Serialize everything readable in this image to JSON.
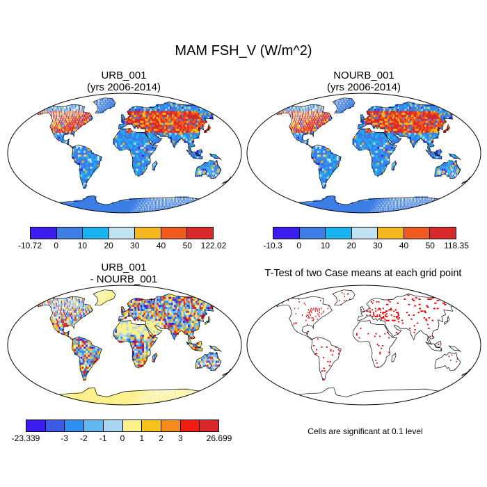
{
  "figure_title": "MAM FSH_V (W/m^2)",
  "colors": {
    "ocean": "#ffffff",
    "coast": "#000000",
    "sig": "#ee0000"
  },
  "panels": [
    {
      "id": "urb",
      "title_line1": "URB_001",
      "title_line2": "(yrs 2006-2014)"
    },
    {
      "id": "nourb",
      "title_line1": "NOURB_001",
      "title_line2": "(yrs 2006-2014)"
    },
    {
      "id": "diff",
      "title_line1": "URB_001",
      "title_line2": "- NOURB_001"
    },
    {
      "id": "ttest",
      "title_line1": "T-Test of two Case means at each grid point",
      "title_line2": ""
    }
  ],
  "ttest_note": "Cells are significant at 0.1 level",
  "chart_data": [
    {
      "type": "heatmap",
      "name": "URB_001",
      "title": "URB_001",
      "subtitle": "(yrs 2006-2014)",
      "colorbar": {
        "tick_labels": [
          "-10.72",
          "0",
          "10",
          "20",
          "30",
          "40",
          "50",
          "122.02"
        ],
        "colors": [
          "#3b1df0",
          "#3c7de6",
          "#1ab4f0",
          "#bfe3f2",
          "#f5b81c",
          "#f05a1e",
          "#d8282b"
        ]
      }
    },
    {
      "type": "heatmap",
      "name": "NOURB_001",
      "title": "NOURB_001",
      "subtitle": "(yrs 2006-2014)",
      "colorbar": {
        "tick_labels": [
          "-10.3",
          "0",
          "10",
          "20",
          "30",
          "40",
          "50",
          "118.35"
        ],
        "colors": [
          "#3b1df0",
          "#3c7de6",
          "#1ab4f0",
          "#bfe3f2",
          "#f5b81c",
          "#f05a1e",
          "#d8282b"
        ]
      }
    },
    {
      "type": "heatmap",
      "name": "URB_001 - NOURB_001",
      "title": "URB_001",
      "subtitle": "- NOURB_001",
      "colorbar": {
        "tick_labels": [
          "-23.339",
          "-3",
          "-2",
          "-1",
          "0",
          "1",
          "2",
          "3",
          "26.699"
        ],
        "colors": [
          "#3b1df0",
          "#3c5ae6",
          "#2f8fee",
          "#64b6ee",
          "#a9d6f2",
          "#fbf08c",
          "#f6c21c",
          "#f48a1a",
          "#f01e12",
          "#d8282b"
        ]
      }
    },
    {
      "type": "heatmap",
      "name": "T-Test",
      "title": "T-Test of two Case means at each grid point",
      "note": "Cells are significant at 0.1 level"
    }
  ]
}
